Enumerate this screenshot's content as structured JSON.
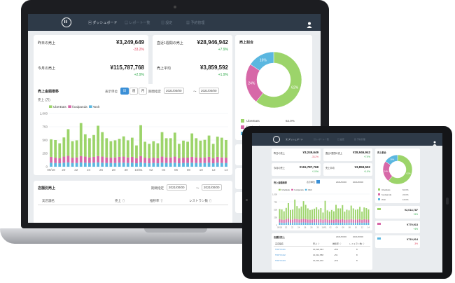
{
  "nav": {
    "items": [
      {
        "icon": "dashboard-icon",
        "label": "ダッシュボード"
      },
      {
        "icon": "report-icon",
        "label": "レポート一覧"
      },
      {
        "icon": "settings-icon",
        "label": "設定"
      },
      {
        "icon": "calendar-icon",
        "label": "予約管理"
      }
    ],
    "user_icon": "user-icon"
  },
  "kpis": [
    {
      "label": "昨日の売上",
      "value": "¥3,249,649",
      "delta": "-33.2%",
      "dir": "neg"
    },
    {
      "label": "直近1週間の売上",
      "value": "¥28,946,942",
      "delta": "+7.9%",
      "dir": "pos"
    },
    {
      "label": "今月の売上",
      "value": "¥115,787,768",
      "delta": "+2.9%",
      "dir": "pos"
    },
    {
      "label": "売上平均",
      "value": "¥3,859,592",
      "delta": "+1.9%",
      "dir": "pos"
    }
  ],
  "trend": {
    "title": "売上金額推移",
    "display_unit_label": "表示単位",
    "units": [
      "日",
      "週",
      "月"
    ],
    "active_unit": "日",
    "period_label": "期間指定",
    "date_from": "2021/00/00",
    "date_to": "2021/00/00",
    "date_sep": "〜",
    "y_unit": "売上 (万)"
  },
  "share": {
    "title": "売上割合",
    "items": [
      {
        "name": "UberEats",
        "percent": "62.0%"
      },
      {
        "name": "foodpanda",
        "percent": "24.0%"
      },
      {
        "name": "Wolt",
        "percent": "16.0%"
      }
    ]
  },
  "stores": {
    "title": "店舗別売上",
    "period_label": "期間指定",
    "date_from": "2021/00/00",
    "date_to": "2021/00/00",
    "date_sep": "〜",
    "columns": [
      "実店舗名",
      "売上 ⇧",
      "推移率 ⇧",
      "レストラン数 ⇧"
    ]
  },
  "tablet": {
    "right_cards": [
      {
        "value": "¥2,014,787",
        "delta": "+6%"
      },
      {
        "value": "¥779,913",
        "delta": "+4%"
      },
      {
        "value": "¥719,914",
        "delta": "-3%"
      }
    ],
    "store_rows": [
      {
        "name": "TOKYO-01",
        "sales": "¥1,022,034",
        "rate": "+6%",
        "count": "8"
      },
      {
        "name": "TOKYO-02",
        "sales": "¥1,014,588",
        "rate": "-2%",
        "count": "8"
      },
      {
        "name": "TOKYO-03",
        "sales": "¥1,001,202",
        "rate": "+4%",
        "count": "8"
      }
    ]
  },
  "colors": {
    "ubereats": "#9cd46a",
    "foodpanda": "#d768a8",
    "wolt": "#5bb7e0",
    "nav": "#2e3a48",
    "accent": "#3a8fd6"
  },
  "chart_data": [
    {
      "type": "bar",
      "stacked": true,
      "title": "売上金額推移",
      "ylabel": "売上 (万)",
      "ylim": [
        0,
        1000
      ],
      "yticks": [
        0,
        250,
        500,
        750,
        1000
      ],
      "x_tick_labels": [
        "09/18",
        "20",
        "22",
        "24",
        "26",
        "28",
        "30",
        "10/01",
        "02",
        "04",
        "06",
        "08",
        "10",
        "12",
        "14"
      ],
      "legend": "top-left",
      "series": [
        {
          "name": "UberEats",
          "color": "#9cd46a",
          "values": [
            330,
            330,
            280,
            360,
            500,
            310,
            320,
            620,
            420,
            360,
            410,
            570,
            460,
            360,
            310,
            320,
            340,
            380,
            320,
            360,
            240,
            580,
            300,
            270,
            310,
            280,
            460,
            360,
            360,
            450,
            270,
            320,
            300,
            440,
            360,
            320,
            330,
            400,
            270,
            380,
            370,
            330
          ]
        },
        {
          "name": "foodpanda",
          "color": "#d768a8",
          "values": [
            110,
            100,
            95,
            115,
            125,
            100,
            105,
            120,
            115,
            105,
            110,
            120,
            115,
            105,
            100,
            105,
            110,
            115,
            105,
            110,
            95,
            120,
            100,
            95,
            100,
            95,
            115,
            105,
            105,
            115,
            95,
            100,
            100,
            110,
            105,
            100,
            105,
            110,
            95,
            110,
            105,
            100
          ]
        },
        {
          "name": "Wolt",
          "color": "#5bb7e0",
          "values": [
            75,
            70,
            65,
            75,
            80,
            70,
            70,
            80,
            75,
            70,
            75,
            80,
            75,
            70,
            70,
            70,
            75,
            75,
            70,
            75,
            65,
            80,
            70,
            65,
            70,
            65,
            75,
            70,
            70,
            75,
            65,
            70,
            70,
            75,
            70,
            70,
            70,
            75,
            65,
            75,
            70,
            70
          ]
        }
      ]
    },
    {
      "type": "pie",
      "donut": true,
      "title": "売上割合",
      "labels": [
        "UberEats",
        "foodpanda",
        "Wolt"
      ],
      "values": [
        62,
        24,
        16
      ],
      "legend": "bottom"
    }
  ]
}
